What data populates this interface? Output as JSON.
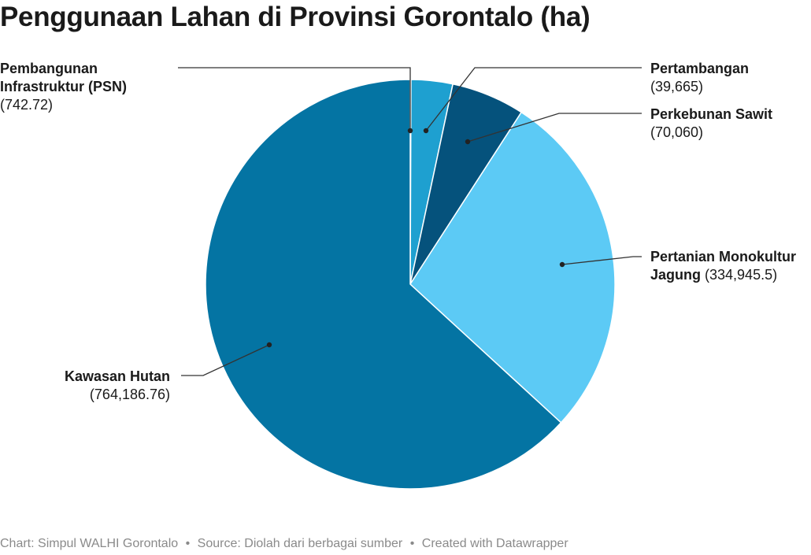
{
  "chart_data": {
    "type": "pie",
    "title": "Penggunaan Lahan di Provinsi Gorontalo (ha)",
    "slices": [
      {
        "name_lines": [
          "Pembangunan",
          "Infrastruktur (PSN)"
        ],
        "value": 742.72,
        "value_label": "742.72",
        "color": "#1f6f9c"
      },
      {
        "name_lines": [
          "Pertambangan"
        ],
        "value": 39665,
        "value_label": "39,665",
        "color": "#1ea0d0"
      },
      {
        "name_lines": [
          "Perkebunan Sawit"
        ],
        "value": 70060,
        "value_label": "70,060",
        "color": "#05527c"
      },
      {
        "name_lines": [
          "Pertanian Monokultur",
          "Jagung"
        ],
        "value": 334945.5,
        "value_label": "334,945.5",
        "color": "#5ccaf5"
      },
      {
        "name_lines": [
          "Kawasan Hutan"
        ],
        "value": 764186.76,
        "value_label": "764,186.76",
        "color": "#0474a3"
      }
    ],
    "start_angle_deg": 0,
    "direction": "clockwise"
  },
  "footer": {
    "chart_credit": "Chart: Simpul WALHI Gorontalo",
    "source": "Source: Diolah dari berbagai sumber",
    "created": "Created with Datawrapper",
    "separator": "•"
  }
}
